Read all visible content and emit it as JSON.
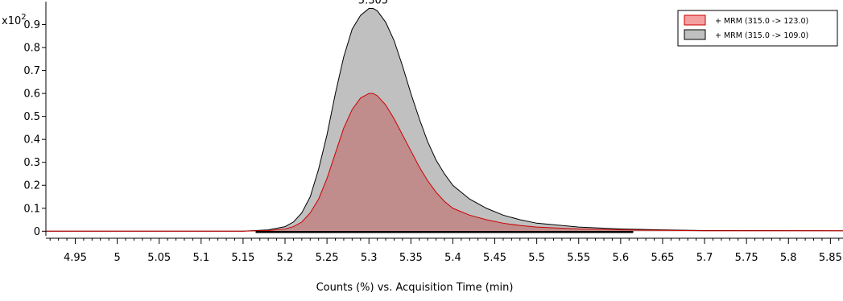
{
  "chart_data": {
    "type": "area",
    "xlabel": "Counts (%) vs. Acquisition Time (min)",
    "y_multiplier_base": "x10",
    "y_multiplier_exp": "2",
    "xlim": [
      4.915,
      5.865
    ],
    "ylim": [
      -0.02,
      1.0
    ],
    "x_ticks": [
      4.95,
      5,
      5.05,
      5.1,
      5.15,
      5.2,
      5.25,
      5.3,
      5.35,
      5.4,
      5.45,
      5.5,
      5.55,
      5.6,
      5.65,
      5.7,
      5.75,
      5.8,
      5.85
    ],
    "y_ticks": [
      0,
      0.1,
      0.2,
      0.3,
      0.4,
      0.5,
      0.6,
      0.7,
      0.8,
      0.9
    ],
    "grid": false,
    "legend_position": "top-right",
    "annotations": [
      {
        "x": 5.305,
        "y": 0.97,
        "text": "5.305"
      }
    ],
    "series": [
      {
        "name": "+ MRM (315.0 -> 109.0)",
        "fill": "#c0c0c0",
        "stroke": "#000000",
        "x": [
          4.915,
          5.15,
          5.18,
          5.2,
          5.21,
          5.22,
          5.23,
          5.24,
          5.25,
          5.26,
          5.27,
          5.28,
          5.29,
          5.3,
          5.305,
          5.31,
          5.32,
          5.33,
          5.34,
          5.35,
          5.36,
          5.37,
          5.38,
          5.39,
          5.4,
          5.42,
          5.44,
          5.46,
          5.48,
          5.5,
          5.55,
          5.6,
          5.65,
          5.7,
          5.865
        ],
        "y": [
          0,
          0,
          0.006,
          0.02,
          0.04,
          0.08,
          0.15,
          0.27,
          0.42,
          0.6,
          0.76,
          0.88,
          0.94,
          0.97,
          0.97,
          0.96,
          0.91,
          0.83,
          0.72,
          0.6,
          0.49,
          0.39,
          0.31,
          0.25,
          0.2,
          0.14,
          0.1,
          0.07,
          0.05,
          0.035,
          0.018,
          0.01,
          0.006,
          0.003,
          0.002
        ]
      },
      {
        "name": "+ MRM (315.0 -> 123.0)",
        "fill": "#c08c8c",
        "stroke": "#cc0000",
        "x": [
          4.915,
          5.15,
          5.18,
          5.2,
          5.21,
          5.22,
          5.23,
          5.24,
          5.25,
          5.26,
          5.27,
          5.28,
          5.29,
          5.3,
          5.305,
          5.31,
          5.32,
          5.33,
          5.34,
          5.35,
          5.36,
          5.37,
          5.38,
          5.39,
          5.4,
          5.42,
          5.44,
          5.46,
          5.48,
          5.5,
          5.55,
          5.6,
          5.65,
          5.7,
          5.865
        ],
        "y": [
          0,
          0,
          0.003,
          0.01,
          0.02,
          0.04,
          0.08,
          0.14,
          0.23,
          0.34,
          0.45,
          0.53,
          0.58,
          0.6,
          0.6,
          0.59,
          0.55,
          0.49,
          0.42,
          0.35,
          0.28,
          0.22,
          0.17,
          0.13,
          0.1,
          0.07,
          0.05,
          0.035,
          0.025,
          0.018,
          0.01,
          0.006,
          0.004,
          0.002,
          0.002
        ]
      }
    ],
    "legend": [
      {
        "label": "+ MRM (315.0 -> 123.0)",
        "swatch": "#f4a0a0",
        "border": "#cc0000"
      },
      {
        "label": "+ MRM (315.0 -> 109.0)",
        "swatch": "#c0c0c0",
        "border": "#000000"
      }
    ],
    "baseline_segments": [
      {
        "x0": 5.165,
        "x1": 5.615,
        "color": "#000000"
      }
    ]
  }
}
